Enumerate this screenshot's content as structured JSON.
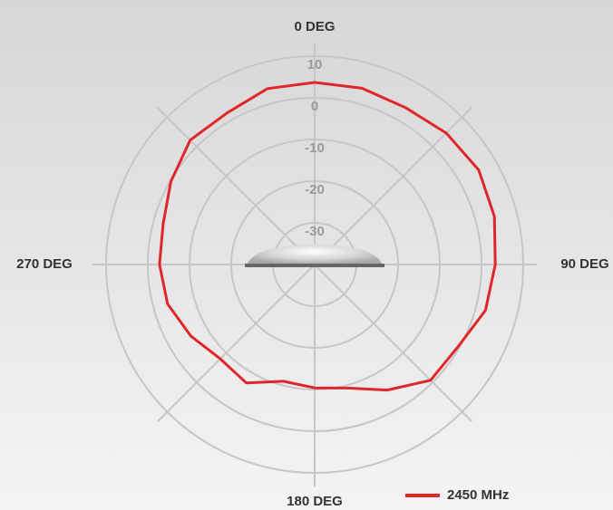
{
  "chart_data": {
    "type": "polar",
    "angle_ticks": [
      {
        "value": 0,
        "label": "0 DEG"
      },
      {
        "value": 90,
        "label": "90 DEG"
      },
      {
        "value": 180,
        "label": "180 DEG"
      },
      {
        "value": 270,
        "label": "270 DEG"
      }
    ],
    "rlim": [
      -40,
      10
    ],
    "rticks": [
      10,
      0,
      -10,
      -20,
      -30
    ],
    "grid": true,
    "theta": [
      0,
      15,
      30,
      45,
      60,
      75,
      90,
      105,
      120,
      135,
      150,
      165,
      180,
      195,
      210,
      225,
      240,
      255,
      270,
      285,
      300,
      315,
      330,
      345
    ],
    "series": [
      {
        "name": "2450 MHz",
        "color": "#e0262b",
        "values": [
          3.7,
          3.8,
          3.5,
          4.6,
          5.4,
          4.6,
          3.3,
          2.4,
          -0.4,
          -0.7,
          -5.2,
          -9.3,
          -10.4,
          -11,
          -7.2,
          -8,
          -5.7,
          -3.5,
          -2.8,
          -2.4,
          -0.2,
          2.2,
          2,
          3.7
        ]
      }
    ],
    "legend": "bottom-right"
  }
}
